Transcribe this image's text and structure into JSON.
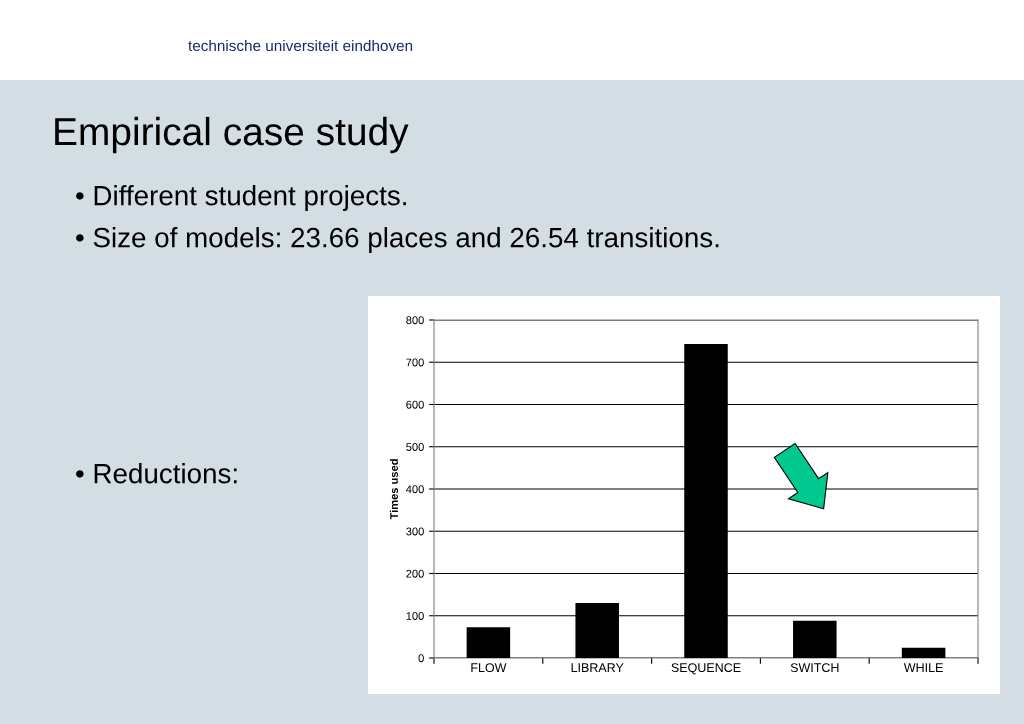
{
  "chart_data": {
    "type": "bar",
    "title": "Empirical case study",
    "ylabel": "Times used",
    "annotations": [
      "technische universiteit eindhoven",
      "• Different student projects.",
      "• Size of models: 23.66 places and 26.54 transitions.",
      "• Reductions:"
    ],
    "categories": [
      "FLOW",
      "LIBRARY",
      "SEQUENCE",
      "SWITCH",
      "WHILE"
    ],
    "values": [
      73,
      130,
      743,
      88,
      24
    ],
    "color": "#000000",
    "ylim": [
      0,
      800
    ],
    "yticks": [
      0,
      100,
      200,
      300,
      400,
      500,
      600,
      700,
      800
    ],
    "grid": "y",
    "legend": false
  }
}
